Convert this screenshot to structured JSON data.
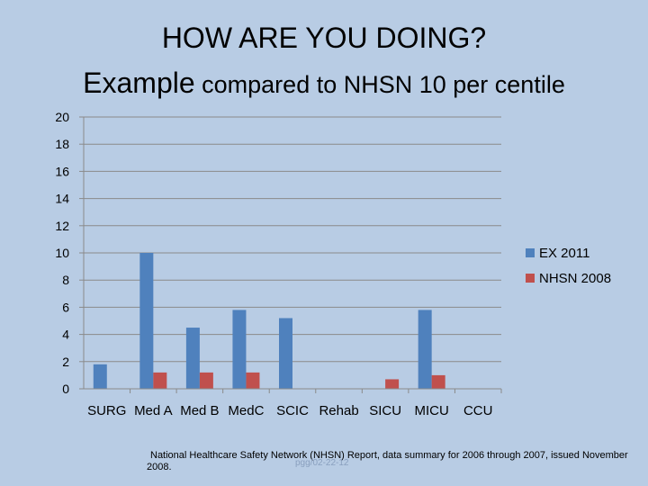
{
  "slide": {
    "title_line1": "HOW ARE YOU DOING?",
    "title_line2_big": "Example",
    "title_line2_small": " compared to NHSN 10 per centile",
    "footnote": "National Healthcare Safety Network (NHSN) Report, data summary for 2006 through 2007, issued November 2008.",
    "watermark": "pgg/02-22-12"
  },
  "chart_data": {
    "type": "bar",
    "title": "",
    "xlabel": "",
    "ylabel": "",
    "categories": [
      "SURG",
      "Med A",
      "Med B",
      "MedC",
      "SCIC",
      "Rehab",
      "SICU",
      "MICU",
      "CCU"
    ],
    "series": [
      {
        "name": "EX 2011",
        "color": "#4f81bd",
        "values": [
          1.8,
          10,
          4.5,
          5.8,
          5.2,
          0,
          0,
          5.8,
          0
        ]
      },
      {
        "name": "NHSN 2008",
        "color": "#c0504d",
        "values": [
          0,
          1.2,
          1.2,
          1.2,
          0,
          0,
          0.7,
          1.0,
          0
        ]
      }
    ],
    "ylim": [
      0,
      20
    ],
    "yticks": [
      0,
      2,
      4,
      6,
      8,
      10,
      12,
      14,
      16,
      18,
      20
    ],
    "grid": true,
    "legend_position": "right"
  }
}
